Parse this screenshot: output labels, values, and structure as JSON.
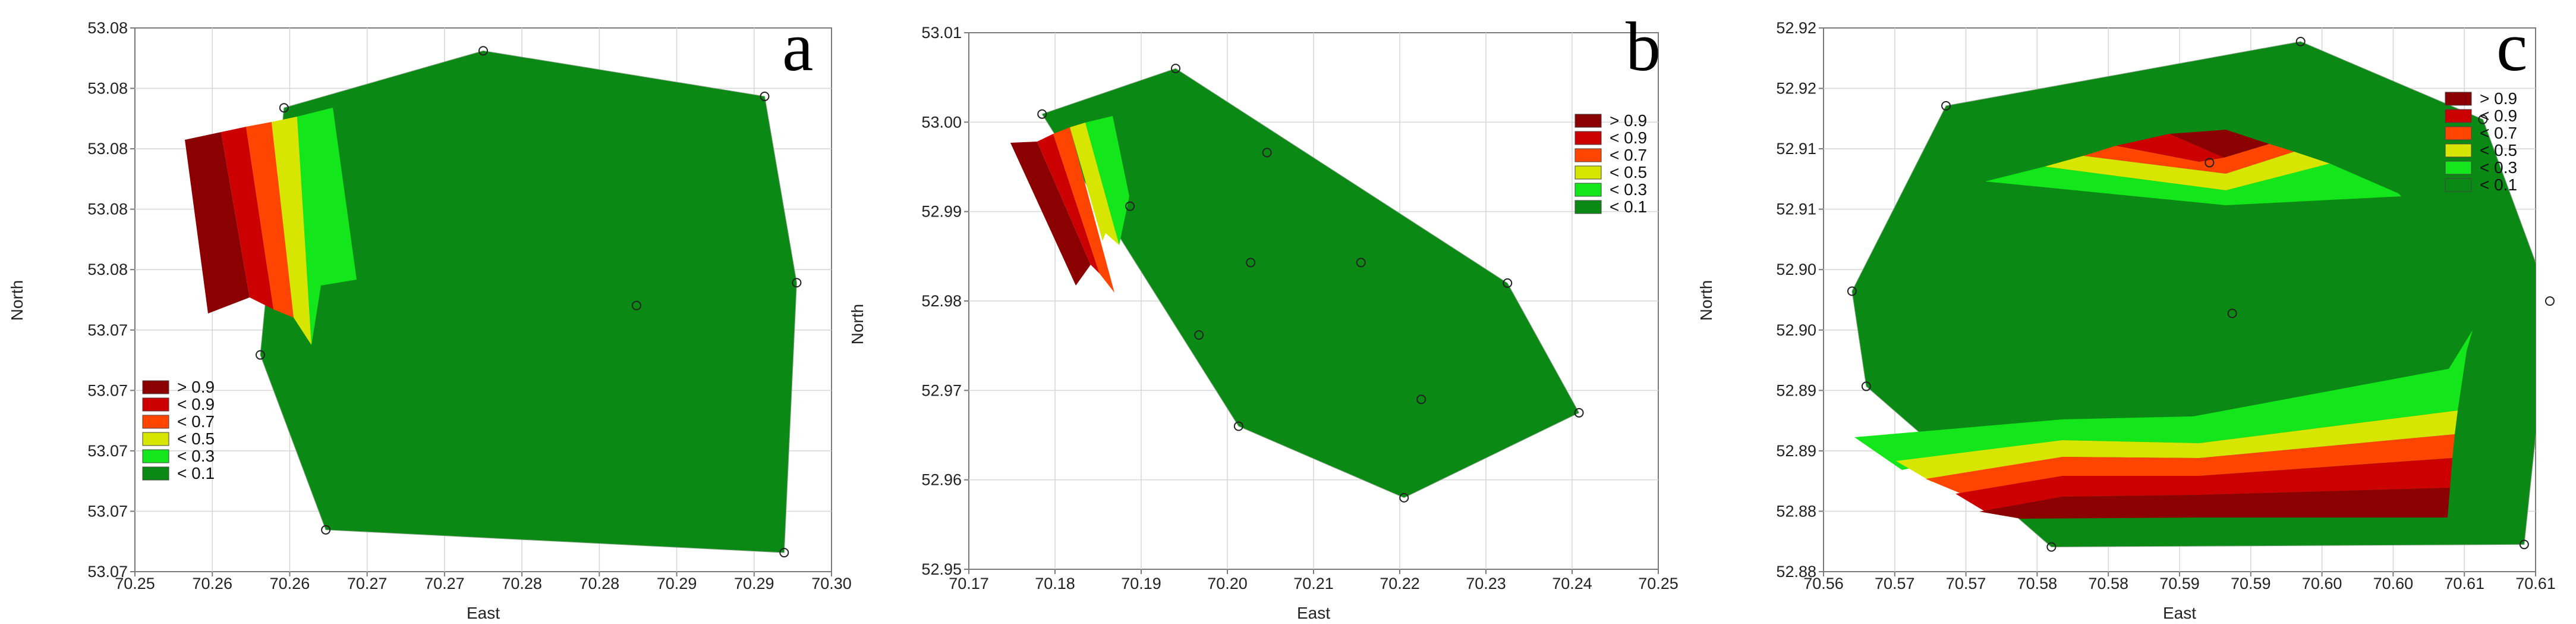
{
  "colors": {
    "gt_0_9": "#8b0000",
    "lt_0_9": "#cc0000",
    "lt_0_7": "#ff4500",
    "lt_0_5": "#d7e600",
    "lt_0_3": "#13e61a",
    "lt_0_1": "#0a8a14",
    "grid": "#d6d6d6",
    "axis": "#7a7a7a"
  },
  "legend_labels": [
    "> 0.9",
    "< 0.9",
    "< 0.7",
    "< 0.5",
    "< 0.3",
    "< 0.1"
  ],
  "chart_data": [
    {
      "panel": "a",
      "type": "heatmap",
      "xlabel": "East",
      "ylabel": "North",
      "xlim": [
        70.25,
        70.3
      ],
      "xticks": [
        "70.25",
        "70.26",
        "70.26",
        "70.27",
        "70.27",
        "70.28",
        "70.28",
        "70.29",
        "70.29",
        "70.30"
      ],
      "yticks": [
        "53.07",
        "53.07",
        "53.07",
        "53.07",
        "53.07",
        "53.08",
        "53.08",
        "53.08",
        "53.08",
        "53.08"
      ],
      "legend_position": "bottom-left",
      "hull": [
        [
          70.2607,
          53.0787
        ],
        [
          70.275,
          53.0802
        ],
        [
          70.2952,
          53.079
        ],
        [
          70.2975,
          53.0741
        ],
        [
          70.2966,
          53.067
        ],
        [
          70.2637,
          53.0676
        ],
        [
          70.259,
          53.0722
        ]
      ],
      "points": [
        [
          70.2607,
          53.0787
        ],
        [
          70.275,
          53.0802
        ],
        [
          70.2952,
          53.079
        ],
        [
          70.2975,
          53.0741
        ],
        [
          70.2966,
          53.067
        ],
        [
          70.2637,
          53.0676
        ],
        [
          70.259,
          53.0722
        ],
        [
          70.286,
          53.0735
        ]
      ]
    },
    {
      "panel": "b",
      "type": "heatmap",
      "xlabel": "East",
      "ylabel": "North",
      "xlim": [
        70.17,
        70.25
      ],
      "ylim": [
        52.95,
        53.01
      ],
      "xticks": [
        "70.17",
        "70.18",
        "70.19",
        "70.20",
        "70.21",
        "70.22",
        "70.23",
        "70.24",
        "70.25"
      ],
      "yticks": [
        "52.95",
        "52.96",
        "52.97",
        "52.98",
        "52.99",
        "53.00",
        "53.01"
      ],
      "legend_position": "top-right",
      "hull": [
        [
          70.1785,
          53.0009
        ],
        [
          70.194,
          53.006
        ],
        [
          70.2325,
          52.982
        ],
        [
          70.2408,
          52.9675
        ],
        [
          70.2205,
          52.958
        ],
        [
          70.2013,
          52.966
        ]
      ],
      "points": [
        [
          70.1785,
          53.0009
        ],
        [
          70.194,
          53.006
        ],
        [
          70.2325,
          52.982
        ],
        [
          70.2408,
          52.9675
        ],
        [
          70.2205,
          52.958
        ],
        [
          70.2013,
          52.966
        ],
        [
          70.1887,
          52.9906
        ],
        [
          70.2046,
          52.9966
        ],
        [
          70.2027,
          52.9843
        ],
        [
          70.2155,
          52.9843
        ],
        [
          70.1967,
          52.9762
        ],
        [
          70.2225,
          52.969
        ]
      ]
    },
    {
      "panel": "c",
      "type": "heatmap",
      "xlabel": "East",
      "ylabel": "North",
      "xlim": [
        70.56,
        70.61
      ],
      "xticks": [
        "70.56",
        "70.57",
        "70.57",
        "70.58",
        "70.58",
        "70.59",
        "70.59",
        "70.60",
        "70.60",
        "70.61",
        "70.61"
      ],
      "yticks": [
        "52.88",
        "52.88",
        "52.89",
        "52.89",
        "52.90",
        "52.90",
        "52.91",
        "52.91",
        "52.92",
        "52.92"
      ],
      "legend_position": "top-right",
      "hull": [
        [
          70.562,
          52.8992
        ],
        [
          70.5686,
          52.9142
        ],
        [
          70.5935,
          52.9194
        ],
        [
          70.6063,
          52.9131
        ],
        [
          70.611,
          52.8984
        ],
        [
          70.6092,
          52.8787
        ],
        [
          70.576,
          52.8785
        ],
        [
          70.563,
          52.8915
        ]
      ],
      "points": [
        [
          70.562,
          52.8992
        ],
        [
          70.5686,
          52.9142
        ],
        [
          70.5935,
          52.9194
        ],
        [
          70.6063,
          52.9131
        ],
        [
          70.611,
          52.8984
        ],
        [
          70.6092,
          52.8787
        ],
        [
          70.576,
          52.8785
        ],
        [
          70.563,
          52.8915
        ],
        [
          70.5871,
          52.9096
        ],
        [
          70.5887,
          52.8974
        ]
      ]
    }
  ]
}
